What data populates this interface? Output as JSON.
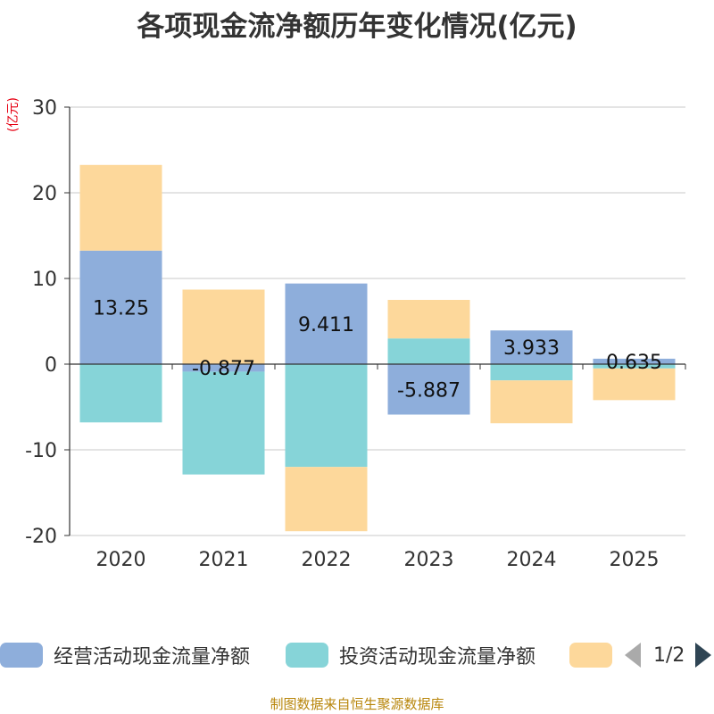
{
  "title": "各项现金流净额历年变化情况(亿元)",
  "unit_label": "(亿元)",
  "source": "制图数据来自恒生聚源数据库",
  "legend": {
    "items": [
      {
        "label": "经营活动现金流量净额",
        "color": "#8eaedb"
      },
      {
        "label": "投资活动现金流量净额",
        "color": "#86d4d8"
      },
      {
        "label": "",
        "color": "#fdd89b"
      }
    ],
    "page": "1/2"
  },
  "chart_data": {
    "type": "bar",
    "stacked": true,
    "categories": [
      "2020",
      "2021",
      "2022",
      "2023",
      "2024",
      "2025"
    ],
    "series": [
      {
        "name": "经营活动现金流量净额",
        "color": "#8eaedb",
        "values": [
          13.25,
          -0.877,
          9.411,
          -5.887,
          3.933,
          0.635
        ],
        "labels": [
          "13.25",
          "-0.877",
          "9.411",
          "-5.887",
          "3.933",
          "0.635"
        ]
      },
      {
        "name": "投资活动现金流量净额",
        "color": "#86d4d8",
        "values": [
          -6.8,
          -12.0,
          -12.0,
          3.0,
          -1.9,
          -0.5
        ]
      },
      {
        "color": "#fdd89b",
        "values": [
          10.0,
          8.7,
          -7.5,
          4.5,
          -5.0,
          -3.7
        ]
      }
    ],
    "ylim": [
      -20,
      30
    ],
    "yticks": [
      30,
      20,
      10,
      0,
      -10,
      -20
    ],
    "grid": true
  }
}
